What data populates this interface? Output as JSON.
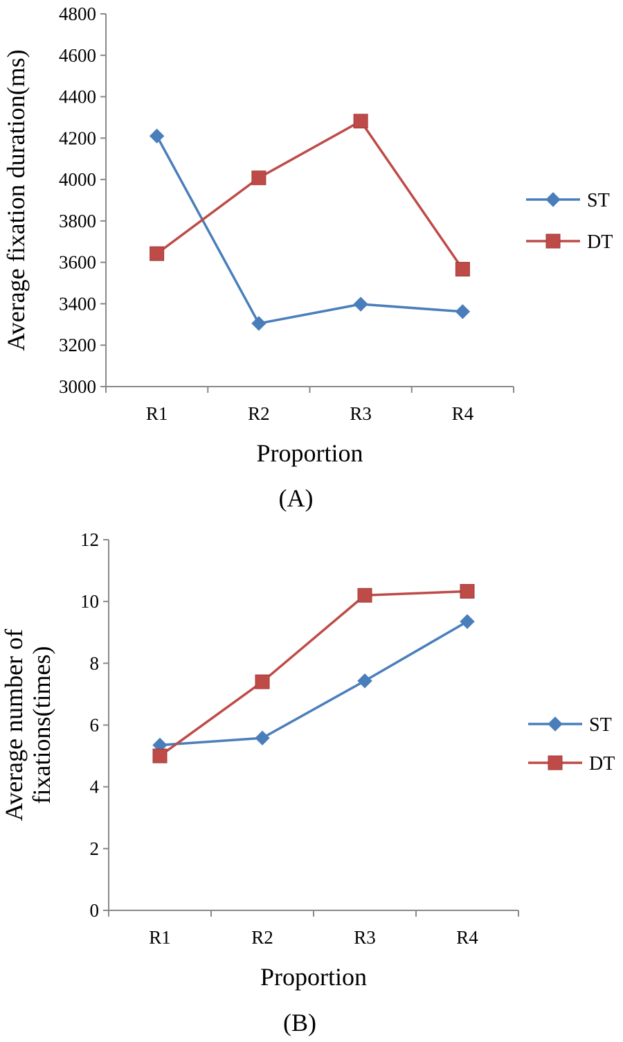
{
  "chart_data": [
    {
      "type": "line",
      "panel_label": "(A)",
      "categories": [
        "R1",
        "R2",
        "R3",
        "R4"
      ],
      "xlabel": "Proportion",
      "ylabel": "Average fixation duration(ms)",
      "ylim": [
        3000,
        4800
      ],
      "yticks": [
        3000,
        3200,
        3400,
        3600,
        3800,
        4000,
        4200,
        4400,
        4600,
        4800
      ],
      "legend_position": "right",
      "series": [
        {
          "name": "ST",
          "color": "#4a7ebb",
          "marker": "diamond",
          "values": [
            4210,
            3305,
            3398,
            3362
          ]
        },
        {
          "name": "DT",
          "color": "#be4b48",
          "marker": "square",
          "values": [
            3642,
            4008,
            4282,
            3567
          ]
        }
      ]
    },
    {
      "type": "line",
      "panel_label": "(B)",
      "categories": [
        "R1",
        "R2",
        "R3",
        "R4"
      ],
      "xlabel": "Proportion",
      "ylabel_lines": [
        "Average number of",
        "fixations(times)"
      ],
      "ylim": [
        0,
        12
      ],
      "yticks": [
        0,
        2,
        4,
        6,
        8,
        10,
        12
      ],
      "legend_position": "right",
      "series": [
        {
          "name": "ST",
          "color": "#4a7ebb",
          "marker": "diamond",
          "values": [
            5.35,
            5.58,
            7.43,
            9.35
          ]
        },
        {
          "name": "DT",
          "color": "#be4b48",
          "marker": "square",
          "values": [
            5.0,
            7.4,
            10.2,
            10.33
          ]
        }
      ]
    }
  ]
}
